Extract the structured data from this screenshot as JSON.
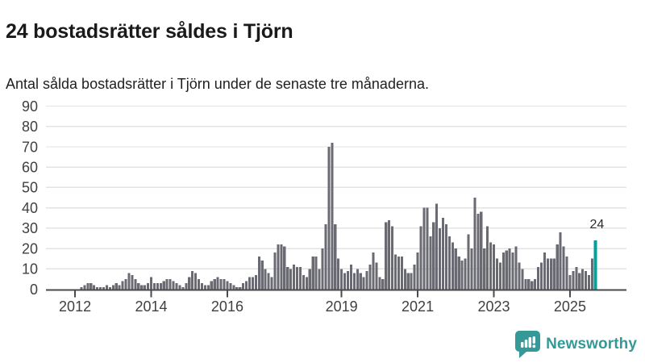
{
  "header": {
    "title": "24 bostadsrätter såldes i Tjörn",
    "subtitle": "Antal sålda bostadsrätter i Tjörn under de senaste tre månaderna."
  },
  "footer": {
    "brand": "Newsworthy",
    "logo_icon": "newsworthy-speech-bubble-bar-chart-icon"
  },
  "colors": {
    "bar": "#6a6a72",
    "highlight": "#00a09b",
    "grid": "#e3e3e3",
    "axis": "#4a4a4a",
    "axis_text": "#404040",
    "title_text": "#1a1a1a",
    "brand_teal": "#359997"
  },
  "chart_data": {
    "type": "bar",
    "title": "24 bostadsrätter såldes i Tjörn",
    "subtitle": "Antal sålda bostadsrätter i Tjörn under de senaste tre månaderna.",
    "x_is_time": true,
    "start_month": "2011-05",
    "end_month": "2025-09",
    "frequency": "monthly",
    "ylim": [
      0,
      90
    ],
    "y_ticks": [
      0,
      10,
      20,
      30,
      40,
      50,
      60,
      70,
      80,
      90
    ],
    "x_tick_years": [
      2012,
      2014,
      2016,
      2019,
      2021,
      2023,
      2025
    ],
    "grid": "horizontal",
    "legend": "none",
    "highlight_last_bar": true,
    "highlight_value_label": "24",
    "values": [
      0,
      0,
      0,
      0,
      0,
      0,
      0,
      0,
      0,
      0,
      1,
      2,
      3,
      3,
      2,
      1,
      1,
      1,
      2,
      1,
      2,
      3,
      2,
      4,
      5,
      8,
      7,
      5,
      3,
      2,
      2,
      3,
      6,
      3,
      3,
      3,
      4,
      5,
      5,
      4,
      3,
      2,
      1,
      3,
      6,
      9,
      8,
      5,
      3,
      2,
      2,
      4,
      5,
      6,
      5,
      5,
      4,
      3,
      2,
      1,
      1,
      3,
      4,
      6,
      6,
      7,
      16,
      14,
      10,
      8,
      6,
      18,
      22,
      22,
      21,
      11,
      10,
      12,
      11,
      11,
      7,
      6,
      10,
      16,
      16,
      10,
      20,
      32,
      70,
      72,
      32,
      15,
      10,
      8,
      9,
      12,
      8,
      10,
      8,
      6,
      9,
      12,
      18,
      13,
      6,
      5,
      33,
      34,
      31,
      17,
      16,
      16,
      10,
      8,
      8,
      12,
      18,
      31,
      40,
      40,
      26,
      33,
      42,
      30,
      35,
      32,
      26,
      23,
      20,
      16,
      14,
      15,
      27,
      20,
      45,
      37,
      38,
      20,
      31,
      23,
      22,
      15,
      13,
      18,
      19,
      20,
      18,
      21,
      13,
      10,
      5,
      5,
      4,
      5,
      11,
      13,
      18,
      15,
      15,
      15,
      22,
      28,
      21,
      16,
      7,
      9,
      11,
      8,
      10,
      9,
      7,
      15,
      24
    ]
  }
}
